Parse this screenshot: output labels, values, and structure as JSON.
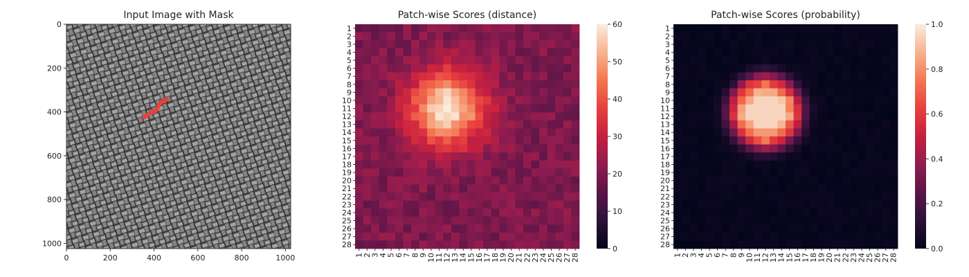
{
  "chart_data": [
    {
      "type": "image",
      "title": "Input Image with Mask",
      "xlim": [
        0,
        1024
      ],
      "ylim": [
        0,
        1024
      ],
      "xticks": [
        0,
        200,
        400,
        600,
        800,
        1000
      ],
      "yticks": [
        0,
        200,
        400,
        600,
        800,
        1000
      ],
      "image_colors": {
        "background": "#4f4f4f",
        "thread_light": "#9a9a9a",
        "thread_dark": "#2e2e2e",
        "mask": "#e8413c"
      },
      "mask_polyline": [
        [
          355,
          425
        ],
        [
          375,
          410
        ],
        [
          385,
          400
        ],
        [
          400,
          400
        ],
        [
          412,
          390
        ],
        [
          422,
          370
        ],
        [
          432,
          355
        ],
        [
          445,
          350
        ],
        [
          458,
          342
        ]
      ]
    },
    {
      "type": "heatmap",
      "title": "Patch-wise Scores (distance)",
      "rows": 28,
      "cols": 28,
      "xticklabels": [
        "1",
        "2",
        "3",
        "4",
        "5",
        "6",
        "7",
        "8",
        "9",
        "10",
        "11",
        "12",
        "13",
        "14",
        "15",
        "16",
        "17",
        "18",
        "19",
        "20",
        "21",
        "22",
        "23",
        "24",
        "25",
        "26",
        "27",
        "28"
      ],
      "yticklabels": [
        "1",
        "2",
        "3",
        "4",
        "5",
        "6",
        "7",
        "8",
        "9",
        "10",
        "11",
        "12",
        "13",
        "14",
        "15",
        "16",
        "17",
        "18",
        "19",
        "20",
        "21",
        "22",
        "23",
        "24",
        "25",
        "26",
        "27",
        "28"
      ],
      "vmin": 0,
      "vmax": 60,
      "colorbar_ticks": [
        "0",
        "10",
        "20",
        "30",
        "40",
        "50",
        "60"
      ],
      "colormap": "rocket",
      "base_value": 20,
      "anomaly": {
        "center_row": 11,
        "center_col": 12,
        "peak": 60,
        "radius": 3.3
      }
    },
    {
      "type": "heatmap",
      "title": "Patch-wise Scores (probability)",
      "rows": 28,
      "cols": 28,
      "xticklabels": [
        "1",
        "2",
        "3",
        "4",
        "5",
        "6",
        "7",
        "8",
        "9",
        "10",
        "11",
        "12",
        "13",
        "14",
        "15",
        "16",
        "17",
        "18",
        "19",
        "20",
        "21",
        "22",
        "23",
        "24",
        "25",
        "26",
        "27",
        "28"
      ],
      "yticklabels": [
        "1",
        "2",
        "3",
        "4",
        "5",
        "6",
        "7",
        "8",
        "9",
        "10",
        "11",
        "12",
        "13",
        "14",
        "15",
        "16",
        "17",
        "18",
        "19",
        "20",
        "21",
        "22",
        "23",
        "24",
        "25",
        "26",
        "27",
        "28"
      ],
      "vmin": 0,
      "vmax": 1,
      "colorbar_ticks": [
        "0.0",
        "0.2",
        "0.4",
        "0.6",
        "0.8",
        "1.0"
      ],
      "colormap": "rocket",
      "base_value": 0.03,
      "anomaly": {
        "center_row": 11.5,
        "center_col": 12,
        "peak": 1.0,
        "radius": 4.6
      }
    }
  ]
}
